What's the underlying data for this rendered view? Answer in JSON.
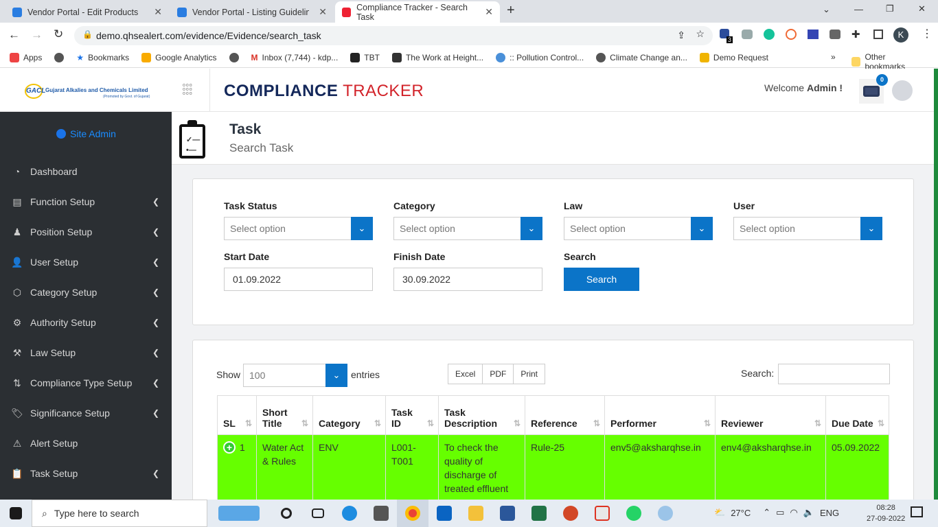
{
  "browser": {
    "tabs": [
      {
        "title": "Vendor Portal - Edit Products"
      },
      {
        "title": "Vendor Portal - Listing Guidelines"
      },
      {
        "title": "Compliance Tracker - Search Task"
      }
    ],
    "url": "demo.qhsealert.com/evidence/Evidence/search_task",
    "extension_badge": "3",
    "profile_initial": "K",
    "bookmarks": [
      "Apps",
      "Bookmarks",
      "Google Analytics",
      "Inbox (7,744) - kdp...",
      "TBT",
      "The Work at Height...",
      ":: Pollution Control...",
      "Climate Change an...",
      "Demo Request"
    ],
    "other_bookmarks": "Other bookmarks"
  },
  "header": {
    "company": "Gujarat Alkalies and Chemicals Limited",
    "company_sub": "(Promoted by Govt. of Gujarat)",
    "brand_a": "COMPLIANCE",
    "brand_b": "TRACKER",
    "welcome": "Welcome",
    "user": "Admin !",
    "notif_count": "0",
    "colors": {
      "brand_navy": "#14285a",
      "brand_red": "#d2232a",
      "accent": "#0b74c8",
      "row_highlight": "#66ff00"
    }
  },
  "sidebar": {
    "role": "Site Admin",
    "items": [
      {
        "label": "Dashboard",
        "icon": "gauge-icon",
        "chev": false
      },
      {
        "label": "Function Setup",
        "icon": "briefcase-icon",
        "chev": true
      },
      {
        "label": "Position Setup",
        "icon": "user-tie-icon",
        "chev": true
      },
      {
        "label": "User Setup",
        "icon": "user-icon",
        "chev": true
      },
      {
        "label": "Category Setup",
        "icon": "shapes-icon",
        "chev": true
      },
      {
        "label": "Authority Setup",
        "icon": "user-gear-icon",
        "chev": true
      },
      {
        "label": "Law Setup",
        "icon": "gavel-icon",
        "chev": true
      },
      {
        "label": "Compliance Type Setup",
        "icon": "sort-icon",
        "chev": true
      },
      {
        "label": "Significance Setup",
        "icon": "tag-icon",
        "chev": true
      },
      {
        "label": "Alert Setup",
        "icon": "warning-icon",
        "chev": false
      },
      {
        "label": "Task Setup",
        "icon": "clipboard-icon",
        "chev": true
      }
    ]
  },
  "page": {
    "title": "Task",
    "subtitle": "Search Task"
  },
  "filters": {
    "task_status": {
      "label": "Task Status",
      "placeholder": "Select option"
    },
    "category": {
      "label": "Category",
      "placeholder": "Select option"
    },
    "law": {
      "label": "Law",
      "placeholder": "Select option"
    },
    "user": {
      "label": "User",
      "placeholder": "Select option"
    },
    "start_date": {
      "label": "Start Date",
      "value": "01.09.2022"
    },
    "finish_date": {
      "label": "Finish Date",
      "value": "30.09.2022"
    },
    "search": {
      "label": "Search",
      "button": "Search"
    }
  },
  "table": {
    "show": "Show",
    "entries_value": "100",
    "entries": "entries",
    "buttons": [
      "Excel",
      "PDF",
      "Print"
    ],
    "search_label": "Search:",
    "columns": [
      "SL",
      "Short Title",
      "Category",
      "Task ID",
      "Task Description",
      "Reference",
      "Performer",
      "Reviewer",
      "Due Date"
    ],
    "rows": [
      [
        "1",
        "Water Act & Rules",
        "ENV",
        "L001-T001",
        "To check the quality of discharge of treated effluent",
        "Rule-25",
        "env5@aksharqhse.in",
        "env4@aksharqhse.in",
        "05.09.2022"
      ]
    ]
  },
  "taskbar": {
    "search": "Type here to search",
    "weather": "27°C",
    "lang": "ENG",
    "time": "08:28",
    "date": "27-09-2022"
  }
}
